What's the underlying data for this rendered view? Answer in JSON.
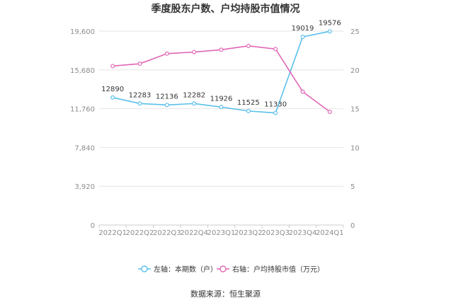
{
  "title": "季度股东户数、户均持股市值情况",
  "source": "数据来源：恒生聚源",
  "colors": {
    "left_series": "#5bc0eb",
    "right_series": "#e066b5",
    "grid": "#e6e6e6",
    "axis_text": "#8c8c8c"
  },
  "chart_data": {
    "type": "line",
    "categories": [
      "2022Q1",
      "2022Q2",
      "2022Q3",
      "2022Q4",
      "2023Q1",
      "2023Q2",
      "2023Q3",
      "2023Q4",
      "2024Q1"
    ],
    "y_left": {
      "min": 0,
      "max": 19600,
      "ticks": [
        "0",
        "3,920",
        "7,840",
        "11,760",
        "15,680",
        "19,600"
      ]
    },
    "y_right": {
      "min": 0,
      "max": 25,
      "ticks": [
        "0",
        "5",
        "10",
        "15",
        "20",
        "25"
      ]
    },
    "grid": true,
    "legend_position": "bottom-center",
    "series": [
      {
        "name": "左轴：本期数（户）",
        "axis": "left",
        "values": [
          12890,
          12283,
          12136,
          12282,
          11926,
          11525,
          11330,
          19019,
          19576
        ],
        "labels": [
          "12890",
          "12283",
          "12136",
          "12282",
          "11926",
          "11525",
          "11330",
          "19019",
          "19576"
        ]
      },
      {
        "name": "右轴：户均持股市值（万元）",
        "axis": "right",
        "values": [
          20.5,
          20.8,
          22.1,
          22.3,
          22.6,
          23.1,
          22.7,
          17.2,
          14.6
        ]
      }
    ]
  }
}
